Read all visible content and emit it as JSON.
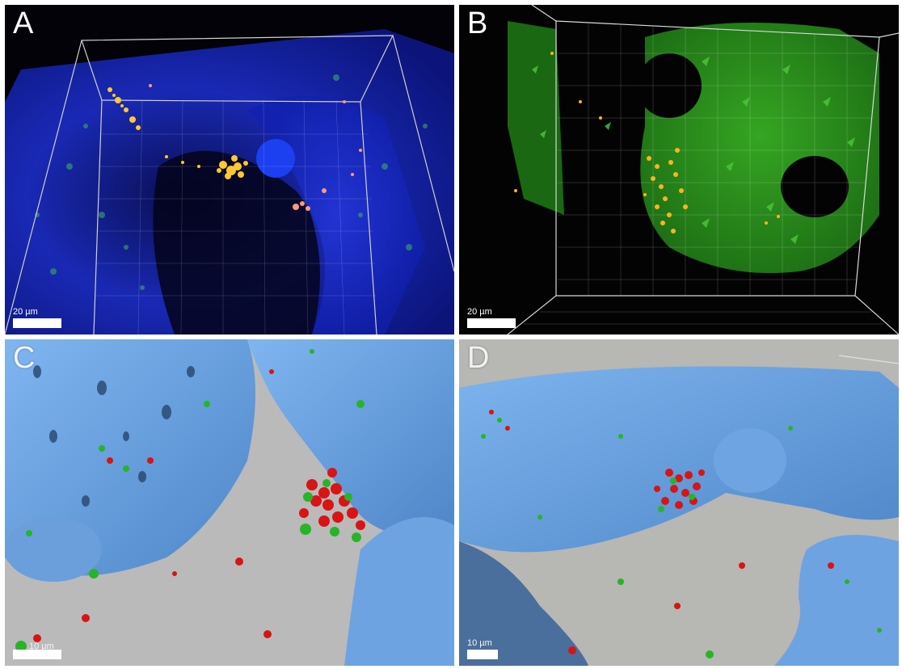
{
  "figure": {
    "panels": [
      {
        "label": "A",
        "scale_text": "20 µm",
        "surface": "fluorescence-blue-green-with-yellow-spots"
      },
      {
        "label": "B",
        "scale_text": "20 µm",
        "surface": "fluorescence-green-with-orange-spots"
      },
      {
        "label": "C",
        "scale_text": "10 µm",
        "surface": "3d-render-blue-with-red-green-spheres"
      },
      {
        "label": "D",
        "scale_text": "10 µm",
        "surface": "3d-render-blue-with-red-green-spheres"
      }
    ],
    "colors": {
      "blue_tissue": "#1a2fc8",
      "green_tissue": "#2f9a1d",
      "render_blue": "#6fa6e6",
      "render_bg": "#b8b8b5",
      "particle_red": "#d81414",
      "particle_green": "#27b427",
      "particle_yellow": "#ffcc33"
    }
  }
}
